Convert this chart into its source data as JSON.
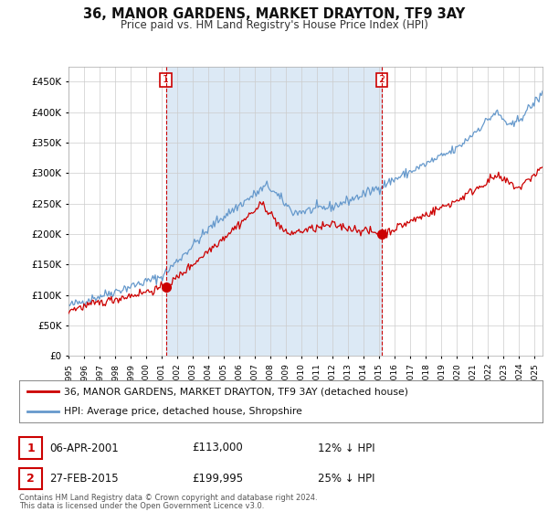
{
  "title": "36, MANOR GARDENS, MARKET DRAYTON, TF9 3AY",
  "subtitle": "Price paid vs. HM Land Registry's House Price Index (HPI)",
  "legend_line1": "36, MANOR GARDENS, MARKET DRAYTON, TF9 3AY (detached house)",
  "legend_line2": "HPI: Average price, detached house, Shropshire",
  "sale1_date": "06-APR-2001",
  "sale1_price": "£113,000",
  "sale1_hpi": "12% ↓ HPI",
  "sale2_date": "27-FEB-2015",
  "sale2_price": "£199,995",
  "sale2_hpi": "25% ↓ HPI",
  "footnote1": "Contains HM Land Registry data © Crown copyright and database right 2024.",
  "footnote2": "This data is licensed under the Open Government Licence v3.0.",
  "hpi_color": "#6699cc",
  "price_color": "#cc0000",
  "marker_color": "#cc0000",
  "fill_color": "#dce9f5",
  "background_color": "#ffffff",
  "grid_color": "#cccccc",
  "ylim": [
    0,
    475000
  ],
  "yticks": [
    0,
    50000,
    100000,
    150000,
    200000,
    250000,
    300000,
    350000,
    400000,
    450000
  ],
  "sale1_x": 2001.27,
  "sale1_y": 113000,
  "sale2_x": 2015.16,
  "sale2_y": 199995,
  "xmin": 1995,
  "xmax": 2025.5
}
